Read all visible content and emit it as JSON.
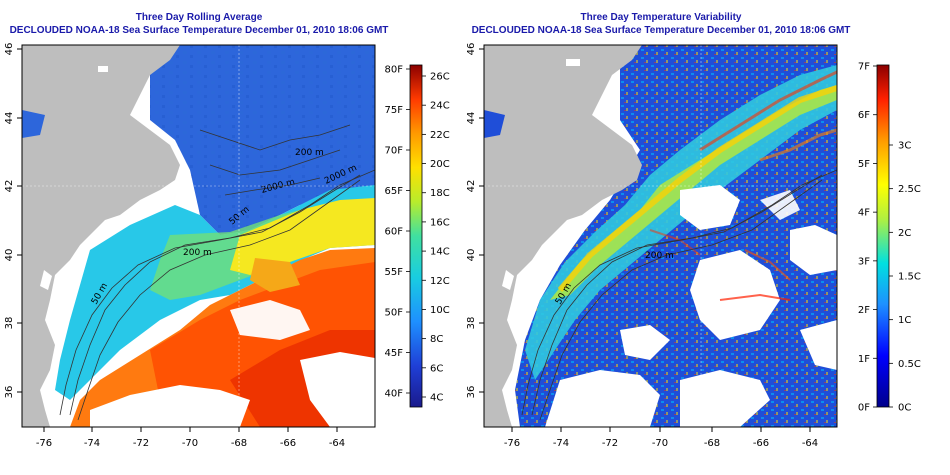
{
  "panels": [
    {
      "title1": "Three Day Rolling Average",
      "title2": "DECLOUDED NOAA-18 Sea Surface Temperature December 01, 2010 18:06 GMT",
      "colorbar_left": [
        "80F",
        "75F",
        "70F",
        "65F",
        "60F",
        "55F",
        "50F",
        "45F",
        "40F"
      ],
      "colorbar_right": [
        "26C",
        "24C",
        "22C",
        "20C",
        "18C",
        "16C",
        "14C",
        "12C",
        "10C",
        "8C",
        "6C",
        "4C"
      ],
      "contour_labels": [
        "200 m",
        "2000 m",
        "50 m",
        "200 m",
        "2000 m",
        "50 m"
      ]
    },
    {
      "title1": "Three Day Temperature Variability",
      "title2": "DECLOUDED NOAA-18 Sea Surface Temperature December 01, 2010 18:06 GMT",
      "colorbar_left": [
        "7F",
        "6F",
        "5F",
        "4F",
        "3F",
        "2F",
        "1F",
        "0F"
      ],
      "colorbar_right": [
        "3C",
        "2.5C",
        "2C",
        "1.5C",
        "1C",
        "0.5C",
        "0C"
      ],
      "contour_labels": [
        "200 m",
        "50 m"
      ]
    }
  ],
  "axes": {
    "x_ticks": [
      "-76",
      "-74",
      "-72",
      "-70",
      "-68",
      "-66",
      "-64"
    ],
    "y_ticks": [
      "46",
      "44",
      "42",
      "40",
      "38",
      "36"
    ]
  },
  "colors": {
    "land": "#bebebe",
    "title": "#1a1aaa",
    "contour": "#333333"
  }
}
